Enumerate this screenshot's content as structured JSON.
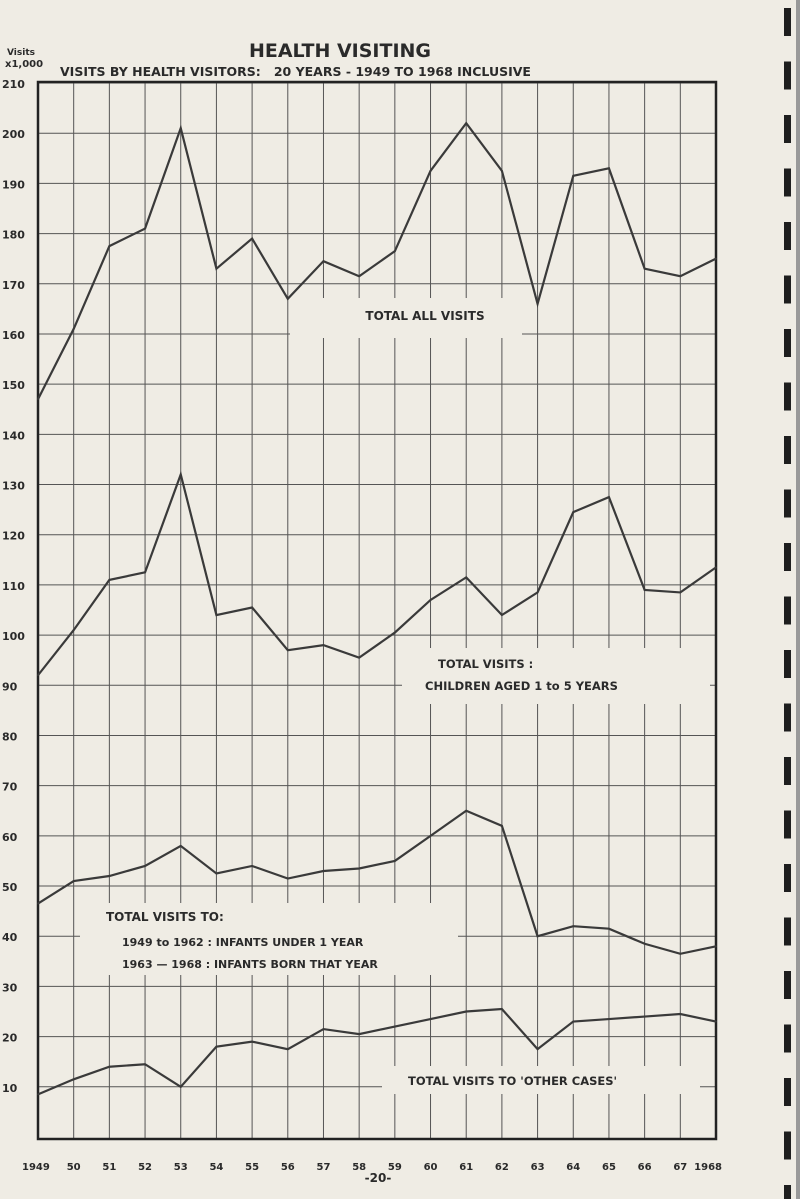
{
  "chart_data": {
    "type": "line",
    "title": "HEALTH VISITING",
    "subtitle": "VISITS BY HEALTH VISITORS:   20 YEARS - 1949 TO 1968 INCLUSIVE",
    "ylabel_line1": "Visits",
    "ylabel_line2": "x1,000",
    "ylim": [
      0,
      210
    ],
    "yticks": [
      10,
      20,
      30,
      40,
      50,
      60,
      70,
      80,
      90,
      100,
      110,
      120,
      130,
      140,
      150,
      160,
      170,
      180,
      190,
      200,
      210
    ],
    "x": [
      1949,
      1950,
      1951,
      1952,
      1953,
      1954,
      1955,
      1956,
      1957,
      1958,
      1959,
      1960,
      1961,
      1962,
      1963,
      1964,
      1965,
      1966,
      1967,
      1968
    ],
    "xtick_labels": [
      "1949",
      "50",
      "51",
      "52",
      "53",
      "54",
      "55",
      "56",
      "57",
      "58",
      "59",
      "60",
      "61",
      "62",
      "63",
      "64",
      "65",
      "66",
      "67",
      "1968"
    ],
    "grid": true,
    "series": [
      {
        "name": "TOTAL ALL VISITS",
        "values": [
          147,
          161,
          177.5,
          181,
          201,
          173,
          179,
          167,
          174.5,
          171.5,
          176.5,
          192.5,
          202,
          192.5,
          166,
          191.5,
          193,
          173,
          171.5,
          175
        ]
      },
      {
        "name": "TOTAL VISITS : CHILDREN AGED 1 to 5 YEARS",
        "values": [
          92,
          101,
          111,
          112.5,
          132,
          104,
          105.5,
          97,
          98,
          95.5,
          100.5,
          107,
          111.5,
          104,
          108.5,
          124.5,
          127.5,
          109,
          108.5,
          113.5
        ]
      },
      {
        "name": "TOTAL VISITS TO: 1949 to 1962 : INFANTS UNDER 1 YEAR / 1963 - 1968 : INFANTS BORN THAT YEAR",
        "values": [
          46.5,
          51,
          52,
          54,
          58,
          52.5,
          54,
          51.5,
          53,
          53.5,
          55,
          60,
          65,
          62,
          40,
          42,
          41.5,
          38.5,
          36.5,
          38
        ]
      },
      {
        "name": "TOTAL VISITS TO 'OTHER CASES'",
        "values": [
          8.5,
          11.5,
          14,
          14.5,
          10,
          18,
          19,
          17.5,
          21.5,
          20.5,
          22,
          23.5,
          25,
          25.5,
          17.5,
          23,
          23.5,
          24,
          24.5,
          23
        ]
      }
    ],
    "annotations": {
      "all": "TOTAL ALL VISITS",
      "children_1": "TOTAL  VISITS :",
      "children_2": "CHILDREN  AGED  1  to  5  YEARS",
      "infants_1": "TOTAL  VISITS  TO:",
      "infants_2": "1949 to 1962 :  INFANTS  UNDER  1 YEAR",
      "infants_3": "1963 — 1968 :  INFANTS  BORN  THAT  YEAR",
      "other": "TOTAL  VISITS  TO  'OTHER  CASES'"
    },
    "line_color": "#3a3a3a"
  },
  "page_number": "-20-"
}
